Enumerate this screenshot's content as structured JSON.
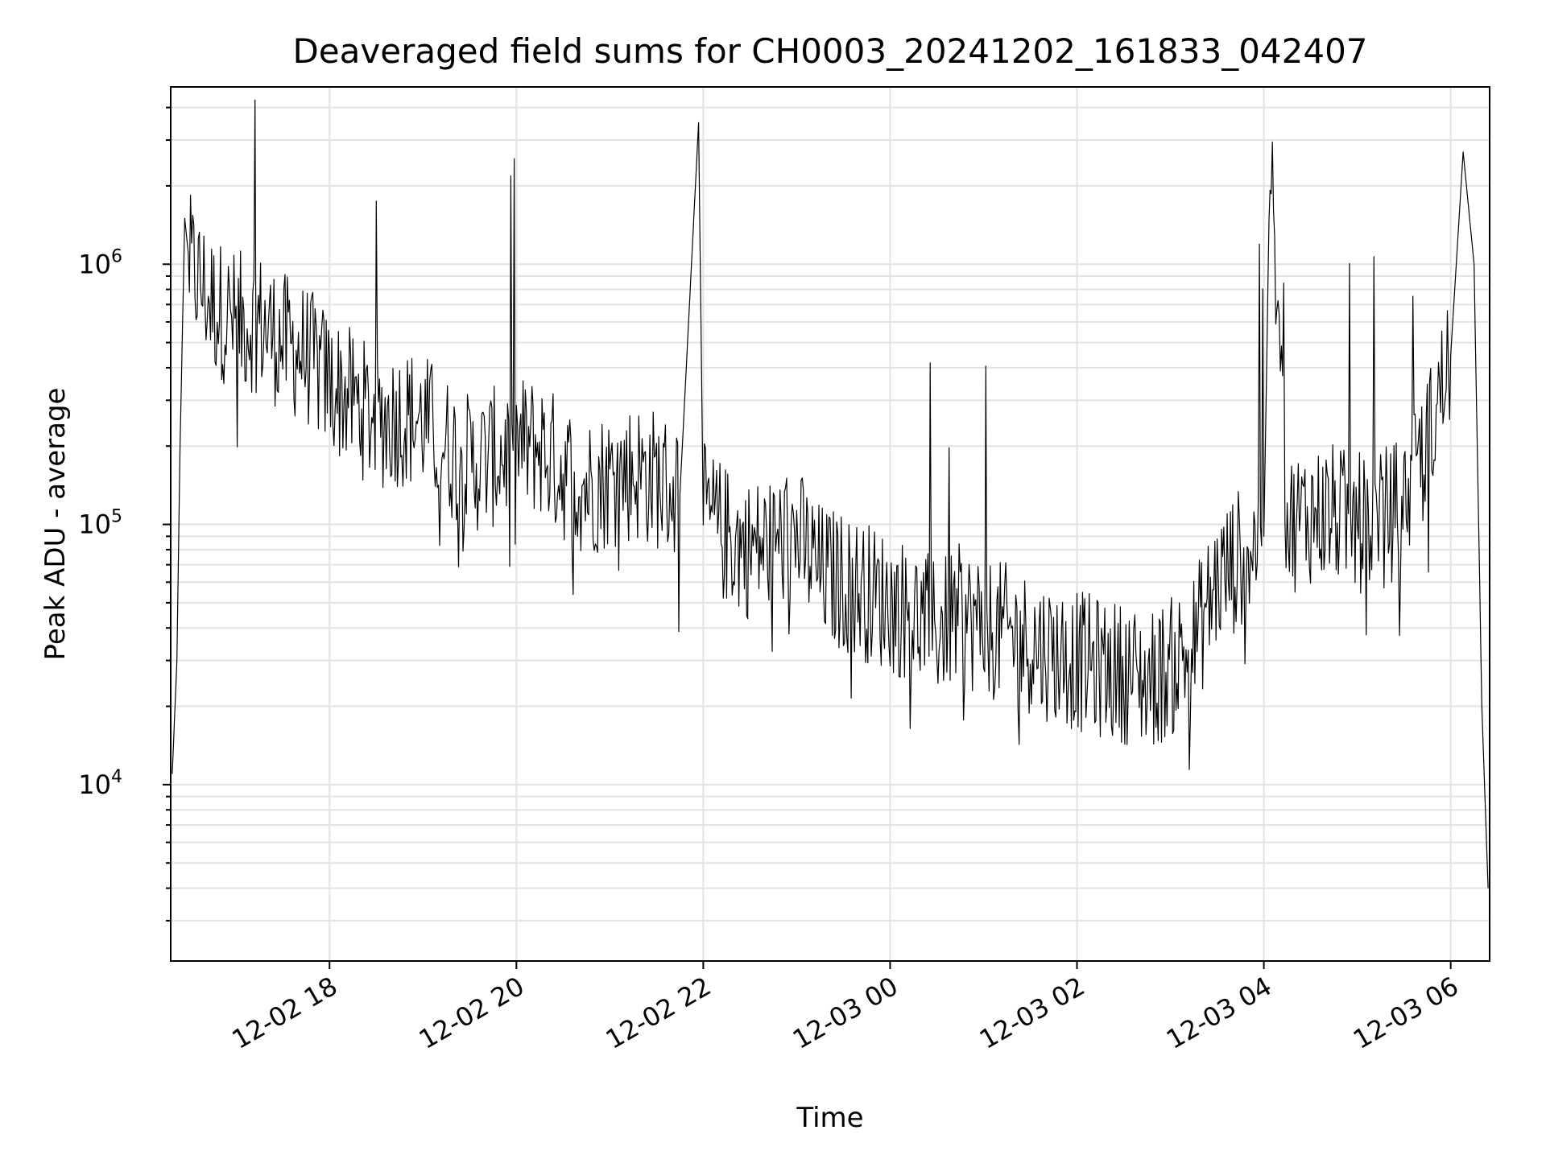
{
  "chart_data": {
    "type": "line",
    "title": "Deaveraged field sums for CH0003_20241202_161833_042407",
    "xlabel": "Time",
    "ylabel": "Peak ADU - average",
    "y_scale": "log",
    "ylim": [
      2100,
      4800000
    ],
    "xlim": [
      "2024-12-02 16:18",
      "2024-12-03 06:25"
    ],
    "grid": true,
    "line_color": "#000000",
    "x_ticks": [
      "12-02 18",
      "12-02 20",
      "12-02 22",
      "12-03 00",
      "12-03 02",
      "12-03 04",
      "12-03 06"
    ],
    "x_tick_times": [
      "2024-12-02 18:00",
      "2024-12-02 20:00",
      "2024-12-02 22:00",
      "2024-12-03 00:00",
      "2024-12-03 02:00",
      "2024-12-03 04:00",
      "2024-12-03 06:00"
    ],
    "y_ticks": [
      {
        "value": 10000,
        "base": "10",
        "exp": "4"
      },
      {
        "value": 100000,
        "base": "10",
        "exp": "5"
      },
      {
        "value": 1000000,
        "base": "10",
        "exp": "6"
      }
    ],
    "series": [
      {
        "x": [
          "2024-12-02 16:19",
          "2024-12-02 16:22",
          "2024-12-02 16:24",
          "2024-12-02 16:27",
          "2024-12-02 16:30",
          "2024-12-02 16:45",
          "2024-12-02 17:00",
          "2024-12-02 17:15",
          "2024-12-02 17:30",
          "2024-12-02 17:45",
          "2024-12-02 18:00",
          "2024-12-02 18:15",
          "2024-12-02 18:30",
          "2024-12-02 18:45",
          "2024-12-02 19:00",
          "2024-12-02 19:15",
          "2024-12-02 19:30",
          "2024-12-02 19:45",
          "2024-12-02 20:00",
          "2024-12-02 20:15",
          "2024-12-02 20:30",
          "2024-12-02 20:45",
          "2024-12-02 21:00",
          "2024-12-02 21:15",
          "2024-12-02 21:30",
          "2024-12-02 21:45",
          "2024-12-02 21:57",
          "2024-12-02 22:00",
          "2024-12-02 22:15",
          "2024-12-02 22:30",
          "2024-12-02 22:45",
          "2024-12-02 23:00",
          "2024-12-02 23:15",
          "2024-12-02 23:30",
          "2024-12-02 23:45",
          "2024-12-03 00:00",
          "2024-12-03 00:15",
          "2024-12-03 00:30",
          "2024-12-03 00:45",
          "2024-12-03 01:00",
          "2024-12-03 01:15",
          "2024-12-03 01:30",
          "2024-12-03 01:45",
          "2024-12-03 02:00",
          "2024-12-03 02:15",
          "2024-12-03 02:30",
          "2024-12-03 02:45",
          "2024-12-03 03:00",
          "2024-12-03 03:15",
          "2024-12-03 03:30",
          "2024-12-03 03:45",
          "2024-12-03 04:00",
          "2024-12-03 04:04",
          "2024-12-03 04:15",
          "2024-12-03 04:30",
          "2024-12-03 04:45",
          "2024-12-03 05:00",
          "2024-12-03 05:15",
          "2024-12-03 05:30",
          "2024-12-03 05:45",
          "2024-12-03 06:00",
          "2024-12-03 06:08",
          "2024-12-03 06:15",
          "2024-12-03 06:20",
          "2024-12-03 06:24"
        ],
        "y": [
          11000,
          30000,
          200000,
          1500000,
          1000000,
          700000,
          600000,
          600000,
          500000,
          450000,
          350000,
          300000,
          250000,
          260000,
          250000,
          200000,
          170000,
          180000,
          200000,
          200000,
          160000,
          140000,
          150000,
          160000,
          150000,
          130000,
          3500000,
          110000,
          90000,
          80000,
          85000,
          90000,
          65000,
          60000,
          55000,
          50000,
          45000,
          40000,
          45000,
          40000,
          38000,
          35000,
          32000,
          30000,
          28000,
          27000,
          25000,
          28000,
          35000,
          60000,
          75000,
          90000,
          2600000,
          100000,
          110000,
          110000,
          100000,
          105000,
          120000,
          200000,
          450000,
          2700000,
          1000000,
          20000,
          4000
        ]
      }
    ]
  }
}
